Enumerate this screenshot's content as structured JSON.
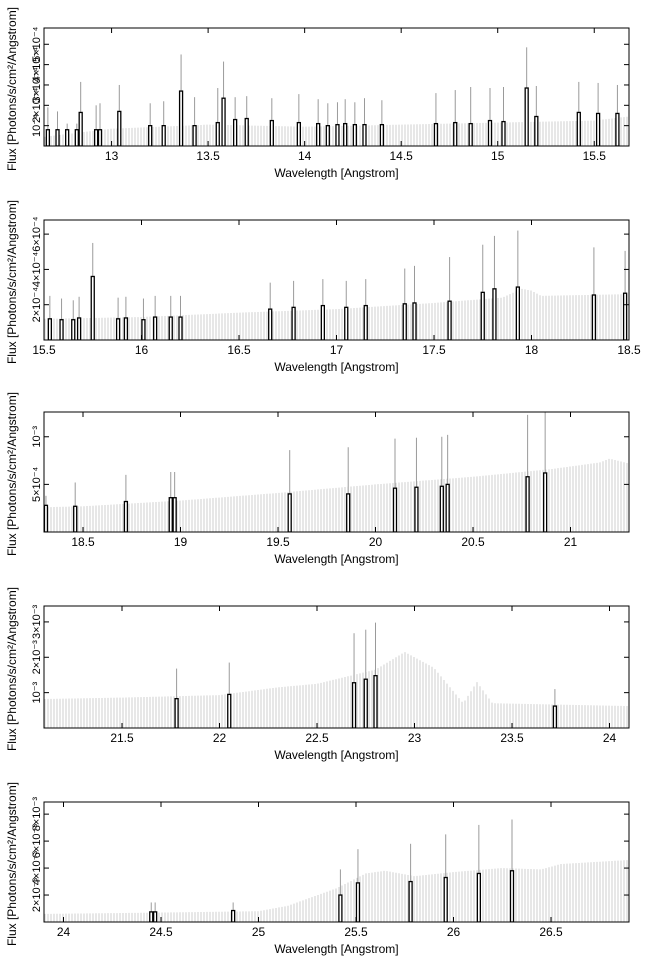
{
  "chart_data": [
    {
      "type": "bar",
      "xlabel": "Wavelength [Angstrom]",
      "ylabel": "Flux [Photons/s/cm²/Angstrom]",
      "xlim": [
        12.65,
        15.68
      ],
      "ylim": [
        0,
        0.00058
      ],
      "xticks": [
        13,
        13.5,
        14,
        14.5,
        15,
        15.5
      ],
      "xtick_labels": [
        "13",
        "13.5",
        "14",
        "14.5",
        "15",
        "15.5"
      ],
      "yticks": [
        0.0001,
        0.0002,
        0.0003,
        0.0004,
        0.0005
      ],
      "ytick_labels": [
        "10⁻⁴",
        "2×10⁻⁴",
        "3×10⁻⁴",
        "4×10⁻⁴",
        "5×10⁻⁴"
      ],
      "continuum": [
        [
          12.65,
          4.5e-05
        ],
        [
          13.0,
          8.5e-05
        ],
        [
          13.5,
          0.000105
        ],
        [
          14.0,
          9.5e-05
        ],
        [
          14.5,
          0.000105
        ],
        [
          15.0,
          0.000115
        ],
        [
          15.5,
          0.000125
        ],
        [
          15.68,
          0.000145
        ]
      ],
      "lines": [
        {
          "x": 12.67,
          "y": 8e-05,
          "err": 0.00011
        },
        {
          "x": 12.72,
          "y": 8e-05,
          "err": 9e-05
        },
        {
          "x": 12.77,
          "y": 8e-05,
          "err": 3e-05
        },
        {
          "x": 12.82,
          "y": 8e-05,
          "err": 3e-05
        },
        {
          "x": 12.84,
          "y": 0.000165,
          "err": 0.00015
        },
        {
          "x": 12.92,
          "y": 8e-05,
          "err": 0.00012
        },
        {
          "x": 12.94,
          "y": 8e-05,
          "err": 0.00013
        },
        {
          "x": 13.04,
          "y": 0.00017,
          "err": 0.00013
        },
        {
          "x": 13.2,
          "y": 0.0001,
          "err": 0.00011
        },
        {
          "x": 13.27,
          "y": 0.0001,
          "err": 0.00012
        },
        {
          "x": 13.36,
          "y": 0.00027,
          "err": 0.00018
        },
        {
          "x": 13.43,
          "y": 0.0001,
          "err": 0.00014
        },
        {
          "x": 13.55,
          "y": 0.000115,
          "err": 0.00017
        },
        {
          "x": 13.58,
          "y": 0.000235,
          "err": 0.00018
        },
        {
          "x": 13.64,
          "y": 0.00013,
          "err": 0.00011
        },
        {
          "x": 13.7,
          "y": 0.000135,
          "err": 0.00011
        },
        {
          "x": 13.83,
          "y": 0.000125,
          "err": 0.00011
        },
        {
          "x": 13.97,
          "y": 0.000115,
          "err": 0.00014
        },
        {
          "x": 14.07,
          "y": 0.00011,
          "err": 0.00012
        },
        {
          "x": 14.12,
          "y": 0.0001,
          "err": 0.00011
        },
        {
          "x": 14.17,
          "y": 0.000105,
          "err": 0.00011
        },
        {
          "x": 14.21,
          "y": 0.00011,
          "err": 0.00012
        },
        {
          "x": 14.26,
          "y": 0.000105,
          "err": 0.00011
        },
        {
          "x": 14.31,
          "y": 0.000105,
          "err": 0.00013
        },
        {
          "x": 14.4,
          "y": 0.000105,
          "err": 0.00012
        },
        {
          "x": 14.68,
          "y": 0.00011,
          "err": 0.00015
        },
        {
          "x": 14.78,
          "y": 0.000115,
          "err": 0.00016
        },
        {
          "x": 14.86,
          "y": 0.00011,
          "err": 0.00018
        },
        {
          "x": 14.96,
          "y": 0.000125,
          "err": 0.00016
        },
        {
          "x": 15.03,
          "y": 0.00012,
          "err": 0.00017
        },
        {
          "x": 15.15,
          "y": 0.000285,
          "err": 0.0002
        },
        {
          "x": 15.2,
          "y": 0.000145,
          "err": 0.00015
        },
        {
          "x": 15.42,
          "y": 0.000165,
          "err": 0.00015
        },
        {
          "x": 15.52,
          "y": 0.00016,
          "err": 0.00015
        },
        {
          "x": 15.62,
          "y": 0.00016,
          "err": 0.00014
        }
      ]
    },
    {
      "type": "bar",
      "xlabel": "Wavelength [Angstrom]",
      "ylabel": "Flux [Photons/s/cm²/Angstrom]",
      "xlim": [
        15.5,
        18.5
      ],
      "ylim": [
        0,
        0.00068
      ],
      "xticks": [
        15.5,
        16,
        16.5,
        17,
        17.5,
        18,
        18.5
      ],
      "xtick_labels": [
        "15.5",
        "16",
        "16.5",
        "17",
        "17.5",
        "18",
        "18.5"
      ],
      "yticks": [
        0.0002,
        0.0004,
        0.0006
      ],
      "ytick_labels": [
        "2×10⁻⁴",
        "4×10⁻⁴",
        "6×10⁻⁴"
      ],
      "continuum": [
        [
          15.5,
          0.00012
        ],
        [
          16.0,
          0.00013
        ],
        [
          16.5,
          0.000155
        ],
        [
          17.0,
          0.000175
        ],
        [
          17.5,
          0.00021
        ],
        [
          17.85,
          0.00024
        ],
        [
          17.95,
          0.00029
        ],
        [
          18.0,
          0.00028
        ],
        [
          18.05,
          0.00025
        ],
        [
          18.5,
          0.00026
        ]
      ],
      "lines": [
        {
          "x": 15.53,
          "y": 0.00012,
          "err": 0.00013
        },
        {
          "x": 15.59,
          "y": 0.000115,
          "err": 0.00012
        },
        {
          "x": 15.65,
          "y": 0.000115,
          "err": 0.00011
        },
        {
          "x": 15.68,
          "y": 0.000125,
          "err": 0.00012
        },
        {
          "x": 15.75,
          "y": 0.00036,
          "err": 0.00019
        },
        {
          "x": 15.88,
          "y": 0.00012,
          "err": 0.00012
        },
        {
          "x": 15.92,
          "y": 0.000125,
          "err": 0.00012
        },
        {
          "x": 16.01,
          "y": 0.000115,
          "err": 0.00012
        },
        {
          "x": 16.07,
          "y": 0.00013,
          "err": 0.00012
        },
        {
          "x": 16.15,
          "y": 0.00013,
          "err": 0.00012
        },
        {
          "x": 16.2,
          "y": 0.00013,
          "err": 0.00012
        },
        {
          "x": 16.66,
          "y": 0.000175,
          "err": 0.00015
        },
        {
          "x": 16.78,
          "y": 0.000185,
          "err": 0.00015
        },
        {
          "x": 16.93,
          "y": 0.000195,
          "err": 0.00015
        },
        {
          "x": 17.05,
          "y": 0.000185,
          "err": 0.00015
        },
        {
          "x": 17.15,
          "y": 0.000195,
          "err": 0.00015
        },
        {
          "x": 17.35,
          "y": 0.000205,
          "err": 0.0002
        },
        {
          "x": 17.4,
          "y": 0.00021,
          "err": 0.00021
        },
        {
          "x": 17.58,
          "y": 0.00022,
          "err": 0.00025
        },
        {
          "x": 17.75,
          "y": 0.00027,
          "err": 0.00027
        },
        {
          "x": 17.81,
          "y": 0.00029,
          "err": 0.0003
        },
        {
          "x": 17.93,
          "y": 0.0003,
          "err": 0.00032
        },
        {
          "x": 18.32,
          "y": 0.000255,
          "err": 0.00027
        },
        {
          "x": 18.48,
          "y": 0.000265,
          "err": 0.00024
        }
      ]
    },
    {
      "type": "bar",
      "xlabel": "Wavelength [Angstrom]",
      "ylabel": "Flux [Photons/s/cm²/Angstrom]",
      "xlim": [
        18.3,
        21.3
      ],
      "ylim": [
        0,
        0.00126
      ],
      "xticks": [
        18.5,
        19,
        19.5,
        20,
        20.5,
        21
      ],
      "xtick_labels": [
        "18.5",
        "19",
        "19.5",
        "20",
        "20.5",
        "21"
      ],
      "yticks": [
        0.0005,
        0.001
      ],
      "ytick_labels": [
        "5×10⁻⁴",
        "10⁻³"
      ],
      "continuum": [
        [
          18.3,
          0.00026
        ],
        [
          18.5,
          0.00027
        ],
        [
          19.0,
          0.00033
        ],
        [
          19.5,
          0.00041
        ],
        [
          20.0,
          0.0005
        ],
        [
          20.5,
          0.00058
        ],
        [
          20.9,
          0.00066
        ],
        [
          21.15,
          0.00073
        ],
        [
          21.2,
          0.00077
        ],
        [
          21.3,
          0.00072
        ]
      ],
      "lines": [
        {
          "x": 18.31,
          "y": 0.00028,
          "err": 0.0001
        },
        {
          "x": 18.46,
          "y": 0.00027,
          "err": 0.00025
        },
        {
          "x": 18.72,
          "y": 0.00032,
          "err": 0.00028
        },
        {
          "x": 18.95,
          "y": 0.00036,
          "err": 0.00027
        },
        {
          "x": 18.97,
          "y": 0.00036,
          "err": 0.00027
        },
        {
          "x": 19.56,
          "y": 0.0004,
          "err": 0.00046
        },
        {
          "x": 19.86,
          "y": 0.0004,
          "err": 0.00049
        },
        {
          "x": 20.1,
          "y": 0.00046,
          "err": 0.00052
        },
        {
          "x": 20.21,
          "y": 0.00047,
          "err": 0.00052
        },
        {
          "x": 20.34,
          "y": 0.00048,
          "err": 0.00052
        },
        {
          "x": 20.37,
          "y": 0.0005,
          "err": 0.00052
        },
        {
          "x": 20.78,
          "y": 0.00058,
          "err": 0.00065
        },
        {
          "x": 20.87,
          "y": 0.00062,
          "err": 0.00072
        }
      ]
    },
    {
      "type": "bar",
      "xlabel": "Wavelength [Angstrom]",
      "ylabel": "Flux [Photons/s/cm²/Angstrom]",
      "xlim": [
        21.1,
        24.1
      ],
      "ylim": [
        0,
        0.00345
      ],
      "xticks": [
        21.5,
        22,
        22.5,
        23,
        23.5,
        24
      ],
      "xtick_labels": [
        "21.5",
        "22",
        "22.5",
        "23",
        "23.5",
        "24"
      ],
      "yticks": [
        0.001,
        0.002,
        0.003
      ],
      "ytick_labels": [
        "10⁻³",
        "2×10⁻³",
        "3×10⁻³"
      ],
      "continuum": [
        [
          21.1,
          0.00082
        ],
        [
          21.5,
          0.00086
        ],
        [
          22.0,
          0.00093
        ],
        [
          22.3,
          0.00115
        ],
        [
          22.5,
          0.00125
        ],
        [
          22.8,
          0.00165
        ],
        [
          22.95,
          0.00215
        ],
        [
          23.1,
          0.0017
        ],
        [
          23.25,
          0.0007
        ],
        [
          23.32,
          0.0013
        ],
        [
          23.4,
          0.0007
        ],
        [
          24.1,
          0.00062
        ]
      ],
      "lines": [
        {
          "x": 21.78,
          "y": 0.00083,
          "err": 0.00085
        },
        {
          "x": 22.05,
          "y": 0.00095,
          "err": 0.0009
        },
        {
          "x": 22.69,
          "y": 0.00128,
          "err": 0.0014
        },
        {
          "x": 22.75,
          "y": 0.00138,
          "err": 0.0014
        },
        {
          "x": 22.8,
          "y": 0.00148,
          "err": 0.0015
        },
        {
          "x": 23.72,
          "y": 0.00062,
          "err": 0.00048
        }
      ]
    },
    {
      "type": "bar",
      "xlabel": "Wavelength [Angstrom]",
      "ylabel": "Flux [Photons/s/cm²/Angstrom]",
      "xlim": [
        23.9,
        26.9
      ],
      "ylim": [
        0,
        0.0089
      ],
      "xticks": [
        24,
        24.5,
        25,
        25.5,
        26,
        26.5
      ],
      "xtick_labels": [
        "24",
        "24.5",
        "25",
        "25.5",
        "26",
        "26.5"
      ],
      "yticks": [
        0.002,
        0.004,
        0.006,
        0.008
      ],
      "ytick_labels": [
        "2×10⁻³",
        "4×10⁻³",
        "6×10⁻³",
        "8×10⁻³"
      ],
      "continuum": [
        [
          23.9,
          0.0006
        ],
        [
          24.5,
          0.0007
        ],
        [
          25.0,
          0.0008
        ],
        [
          25.15,
          0.0012
        ],
        [
          25.4,
          0.0025
        ],
        [
          25.55,
          0.0036
        ],
        [
          25.65,
          0.0038
        ],
        [
          25.8,
          0.0034
        ],
        [
          26.0,
          0.0037
        ],
        [
          26.25,
          0.004
        ],
        [
          26.45,
          0.0039
        ],
        [
          26.55,
          0.0043
        ],
        [
          26.9,
          0.0046
        ]
      ],
      "lines": [
        {
          "x": 24.45,
          "y": 0.00075,
          "err": 0.0007
        },
        {
          "x": 24.47,
          "y": 0.00075,
          "err": 0.0007
        },
        {
          "x": 24.87,
          "y": 0.00085,
          "err": 0.0006
        },
        {
          "x": 25.42,
          "y": 0.002,
          "err": 0.0019
        },
        {
          "x": 25.51,
          "y": 0.0029,
          "err": 0.0025
        },
        {
          "x": 25.78,
          "y": 0.003,
          "err": 0.0028
        },
        {
          "x": 25.96,
          "y": 0.0033,
          "err": 0.0032
        },
        {
          "x": 26.13,
          "y": 0.0036,
          "err": 0.0036
        },
        {
          "x": 26.3,
          "y": 0.0038,
          "err": 0.0038
        }
      ]
    }
  ]
}
